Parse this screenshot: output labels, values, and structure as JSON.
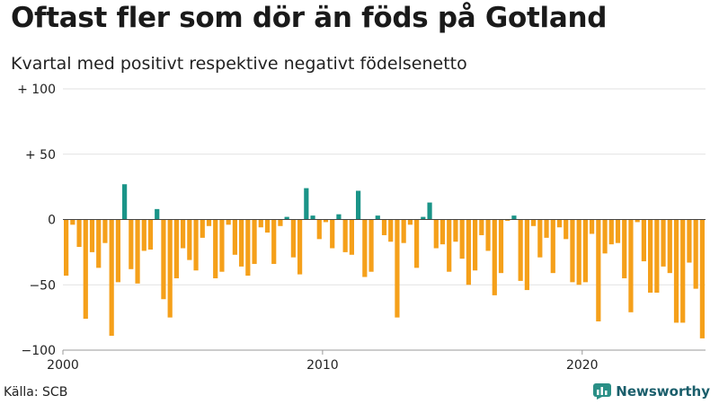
{
  "chart_data": {
    "type": "bar",
    "title": "Oftast fler som dör än föds på Gotland",
    "subtitle": "Kvartal med positivt respektive negativt födelsenetto",
    "xlabel": "",
    "ylabel": "",
    "ylim": [
      -100,
      100
    ],
    "y_ticks": [
      {
        "value": 100,
        "label": "+ 100"
      },
      {
        "value": 50,
        "label": "+  50"
      },
      {
        "value": 0,
        "label": "0"
      },
      {
        "value": -50,
        "label": "−50"
      },
      {
        "value": -100,
        "label": "−100"
      }
    ],
    "x_ticks": [
      {
        "value": 2000,
        "label": "2000"
      },
      {
        "value": 2010,
        "label": "2010"
      },
      {
        "value": 2020,
        "label": "2020"
      }
    ],
    "start_year": 2000,
    "start_quarter": 1,
    "grid": true,
    "colors": {
      "positive": "#1a9488",
      "negative": "#f5a01a"
    },
    "values": [
      -43,
      -4,
      -21,
      -76,
      -25,
      -37,
      -18,
      -89,
      -48,
      27,
      -38,
      -49,
      -24,
      -23,
      8,
      -61,
      -75,
      -45,
      -22,
      -31,
      -39,
      -14,
      -5,
      -45,
      -40,
      -4,
      -27,
      -36,
      -43,
      -34,
      -6,
      -10,
      -34,
      -5,
      2,
      -29,
      -42,
      24,
      3,
      -15,
      -2,
      -22,
      4,
      -25,
      -27,
      22,
      -44,
      -40,
      3,
      -12,
      -17,
      -75,
      -18,
      -4,
      -37,
      2,
      13,
      -22,
      -19,
      -40,
      -17,
      -30,
      -50,
      -39,
      -12,
      -24,
      -58,
      -41,
      -1,
      3,
      -47,
      -54,
      -5,
      -29,
      -14,
      -41,
      -6,
      -15,
      -48,
      -50,
      -48,
      -11,
      -78,
      -26,
      -19,
      -18,
      -45,
      -71,
      -2,
      -32,
      -56,
      -56,
      -36,
      -41,
      -79,
      -79,
      -33,
      -53,
      -91
    ]
  },
  "source": {
    "label": "Källa: SCB"
  },
  "brand": {
    "name": "Newsworthy"
  }
}
